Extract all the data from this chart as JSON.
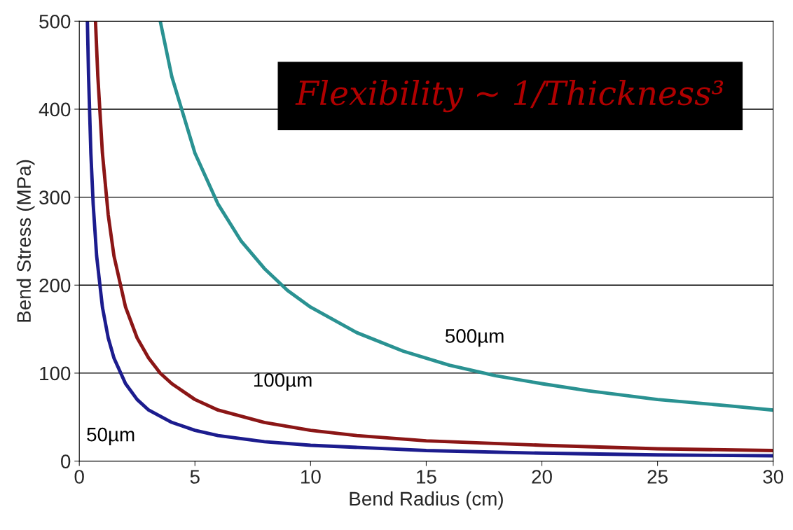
{
  "chart_data": {
    "type": "line",
    "xlabel": "Bend Radius (cm)",
    "ylabel": "Bend Stress (MPa)",
    "xlim": [
      0,
      30
    ],
    "xticks": [
      0,
      5,
      10,
      15,
      20,
      25,
      30
    ],
    "ylim": [
      0,
      500
    ],
    "yticks": [
      0,
      100,
      200,
      300,
      400,
      500
    ],
    "grid": "y",
    "legend": false,
    "annotations": [
      "Flexibility ~ 1/Thickness³"
    ],
    "series": [
      {
        "name": "50µm",
        "color": "#1c1c8e",
        "x": [
          0.35,
          0.4,
          0.5,
          0.6,
          0.75,
          1,
          1.25,
          1.5,
          2,
          2.5,
          3,
          4,
          5,
          6,
          8,
          10,
          15,
          20,
          25,
          30
        ],
        "values": [
          500,
          438,
          350,
          292,
          233,
          175,
          140,
          117,
          88,
          70,
          58,
          44,
          35,
          29,
          22,
          18,
          12,
          9,
          7,
          6
        ]
      },
      {
        "name": "100µm",
        "color": "#8b1616",
        "x": [
          0.7,
          0.8,
          1,
          1.25,
          1.5,
          2,
          2.5,
          3,
          3.5,
          4,
          5,
          6,
          8,
          10,
          12,
          15,
          20,
          25,
          30
        ],
        "values": [
          500,
          438,
          350,
          280,
          233,
          175,
          140,
          117,
          100,
          88,
          70,
          58,
          44,
          35,
          29,
          23,
          18,
          14,
          12
        ]
      },
      {
        "name": "500µm",
        "color": "#2a9292",
        "x": [
          3.5,
          4,
          5,
          6,
          7,
          8,
          9,
          10,
          12,
          14,
          16,
          18,
          20,
          22,
          25,
          28,
          30
        ],
        "values": [
          500,
          437,
          350,
          292,
          250,
          219,
          194,
          175,
          146,
          125,
          109,
          97,
          88,
          80,
          70,
          63,
          58
        ]
      }
    ]
  }
}
